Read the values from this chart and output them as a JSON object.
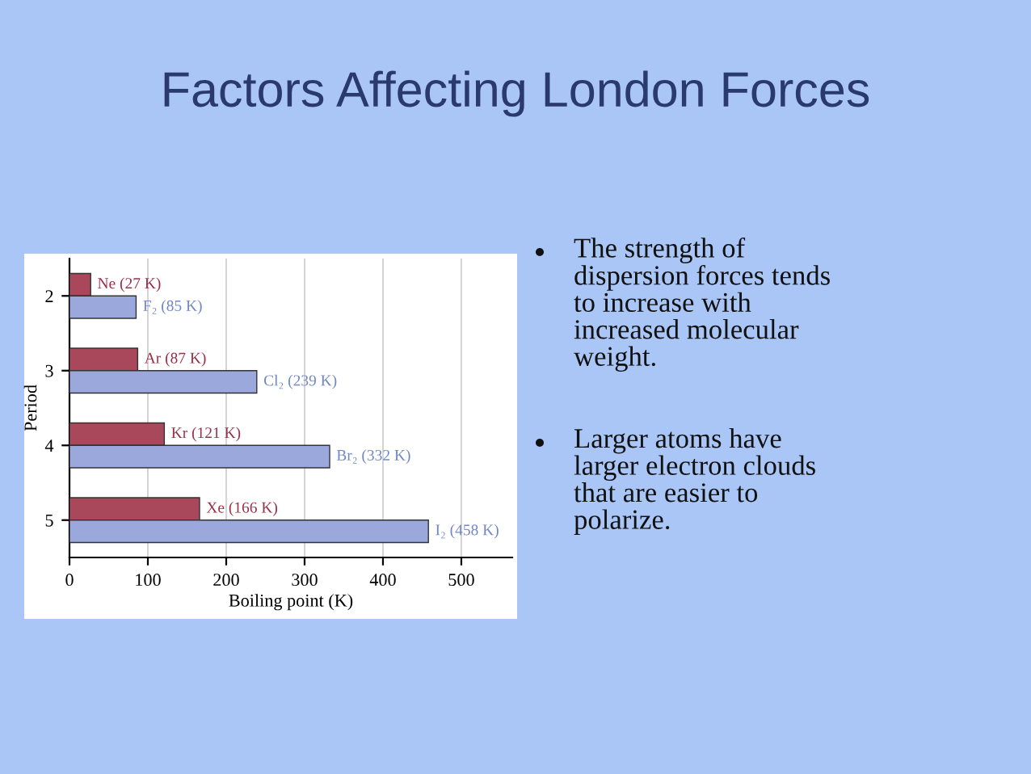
{
  "chart_data": {
    "type": "bar",
    "orientation": "horizontal",
    "title": "Factors Affecting London Forces",
    "categories": [
      "2",
      "3",
      "4",
      "5"
    ],
    "series": [
      {
        "color": "#a8485a",
        "values": [
          27,
          87,
          121,
          166
        ],
        "value_labels": [
          "Ne (27 K)",
          "Ar (87 K)",
          "Kr (121 K)",
          "Xe (166 K)"
        ]
      },
      {
        "color": "#9aa8dc",
        "values": [
          85,
          239,
          332,
          458
        ],
        "value_labels": [
          "F₂ (85 K)",
          "Cl₂ (239 K)",
          "Br₂ (332 K)",
          "I₂ (458 K)"
        ]
      }
    ],
    "xlabel": "Boiling point (K)",
    "ylabel": "Period",
    "xlim": [
      0,
      565
    ],
    "xticks": [
      0,
      100,
      200,
      300,
      400,
      500
    ],
    "grid": "x",
    "legend": false,
    "annotations": [
      "The strength of\ndispersion forces tends\nto increase with\nincreased molecular\nweight.",
      "Larger atoms have\nlarger electron clouds\nthat are easier to\npolarize."
    ]
  }
}
